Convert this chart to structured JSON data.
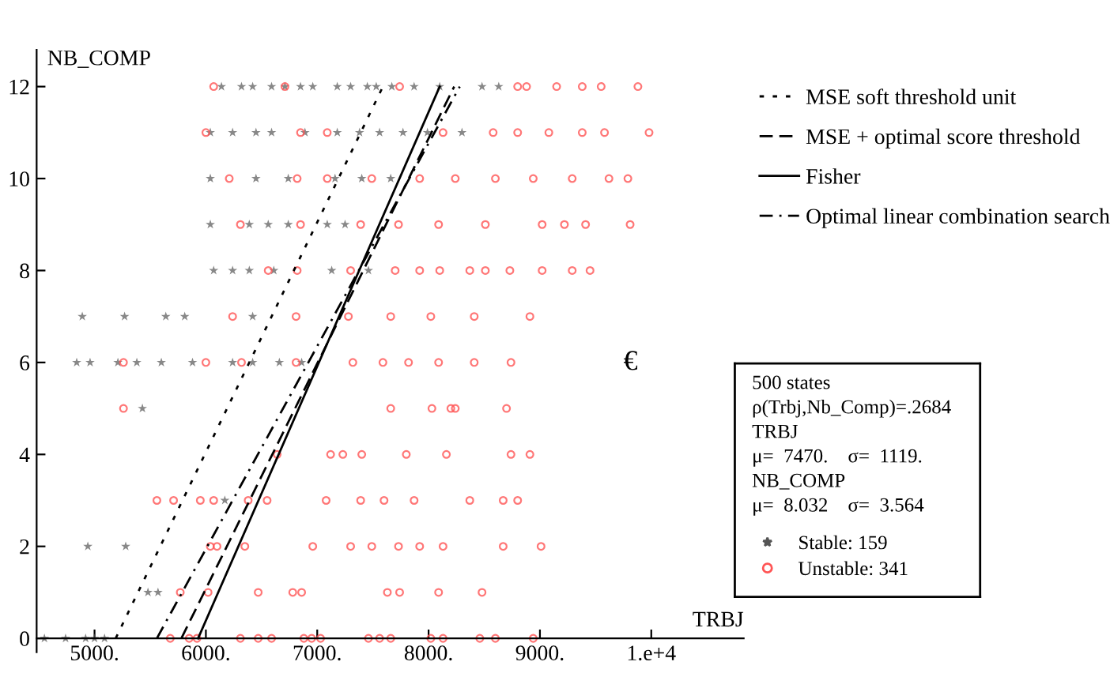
{
  "chart_data": {
    "type": "scatter",
    "xlabel": "TRBJ",
    "ylabel": "NB_COMP",
    "xlim": [
      4480,
      10830
    ],
    "ylim": [
      -0.3,
      12.8
    ],
    "xticks": [
      {
        "value": 5000,
        "label": "5000."
      },
      {
        "value": 6000,
        "label": "6000."
      },
      {
        "value": 7000,
        "label": "7000."
      },
      {
        "value": 8000,
        "label": "8000."
      },
      {
        "value": 9000,
        "label": "9000."
      },
      {
        "value": 10000,
        "label": "1.e+4"
      }
    ],
    "yticks": [
      0,
      2,
      4,
      6,
      8,
      10,
      12
    ],
    "grid": false,
    "legend": "right",
    "annotations": [
      "€",
      "500 states",
      "ρ(Trbj,Nb_Comp)=.2684",
      "TRBJ",
      "μ=  7470.    σ=  1119.",
      "NB_COMP",
      "μ=  8.032    σ=  3.564"
    ],
    "series": [
      {
        "name": "Stable: 159",
        "marker": "star",
        "color": "#555555",
        "x": [
          6140,
          6320,
          6420,
          6590,
          6710,
          6850,
          6960,
          7180,
          7300,
          7450,
          7530,
          7670,
          7870,
          8100,
          8480,
          8630,
          6040,
          6240,
          6450,
          6590,
          6890,
          7180,
          7380,
          7560,
          7770,
          7990,
          8300,
          6040,
          6450,
          6740,
          7160,
          7400,
          7660,
          6040,
          6390,
          6560,
          6740,
          7090,
          7250,
          6070,
          6240,
          6390,
          6610,
          7130,
          7460,
          4890,
          5270,
          5640,
          5810,
          6420,
          4840,
          4960,
          5210,
          5380,
          5600,
          5880,
          6240,
          6420,
          6660,
          6860,
          5430,
          6170,
          4940,
          5280,
          5480,
          5570,
          4550,
          4740,
          4920,
          5000,
          5090
        ],
        "values": [
          12,
          12,
          12,
          12,
          12,
          12,
          12,
          12,
          12,
          12,
          12,
          12,
          12,
          12,
          12,
          12,
          11,
          11,
          11,
          11,
          11,
          11,
          11,
          11,
          11,
          11,
          11,
          10,
          10,
          10,
          10,
          10,
          10,
          9,
          9,
          9,
          9,
          9,
          9,
          8,
          8,
          8,
          8,
          8,
          8,
          7,
          7,
          7,
          7,
          7,
          6,
          6,
          6,
          6,
          6,
          6,
          6,
          6,
          6,
          6,
          5,
          3,
          2,
          2,
          1,
          1,
          0,
          0,
          0,
          0,
          0
        ]
      },
      {
        "name": "Unstable: 341",
        "marker": "circle",
        "color": "#ff5555",
        "x": [
          6070,
          6710,
          7740,
          8800,
          8880,
          9150,
          9380,
          9550,
          9880,
          6000,
          6850,
          7090,
          8130,
          8580,
          8800,
          9080,
          9380,
          9580,
          9980,
          6210,
          6820,
          7090,
          7490,
          7920,
          8240,
          8600,
          8940,
          9290,
          9620,
          9790,
          6310,
          6850,
          7390,
          7730,
          8090,
          8510,
          9020,
          9220,
          9410,
          9810,
          6560,
          6820,
          7300,
          7700,
          7920,
          8100,
          8370,
          8510,
          8730,
          9020,
          9290,
          9450,
          6240,
          6810,
          7280,
          7660,
          8020,
          8410,
          8910,
          5260,
          6000,
          6320,
          6810,
          7320,
          7590,
          7820,
          8090,
          8410,
          8740,
          5260,
          7660,
          8030,
          8200,
          8240,
          8700,
          6640,
          7120,
          7230,
          7400,
          7800,
          8160,
          8740,
          8910,
          5560,
          5710,
          5950,
          6070,
          6380,
          6550,
          7080,
          7390,
          7600,
          7870,
          8370,
          8670,
          8800,
          6040,
          6100,
          6350,
          6960,
          7300,
          7490,
          7730,
          7920,
          8130,
          8670,
          9010,
          5770,
          6020,
          6470,
          6780,
          6860,
          7630,
          7740,
          8090,
          8480,
          5680,
          5850,
          5920,
          6310,
          6470,
          6590,
          6880,
          6950,
          7030,
          7460,
          7560,
          7660,
          8020,
          8130,
          8460,
          8600,
          8940
        ],
        "values": [
          12,
          12,
          12,
          12,
          12,
          12,
          12,
          12,
          12,
          11,
          11,
          11,
          11,
          11,
          11,
          11,
          11,
          11,
          11,
          10,
          10,
          10,
          10,
          10,
          10,
          10,
          10,
          10,
          10,
          10,
          9,
          9,
          9,
          9,
          9,
          9,
          9,
          9,
          9,
          9,
          8,
          8,
          8,
          8,
          8,
          8,
          8,
          8,
          8,
          8,
          8,
          8,
          7,
          7,
          7,
          7,
          7,
          7,
          7,
          6,
          6,
          6,
          6,
          6,
          6,
          6,
          6,
          6,
          6,
          5,
          5,
          5,
          5,
          5,
          5,
          4,
          4,
          4,
          4,
          4,
          4,
          4,
          4,
          3,
          3,
          3,
          3,
          3,
          3,
          3,
          3,
          3,
          3,
          3,
          3,
          3,
          2,
          2,
          2,
          2,
          2,
          2,
          2,
          2,
          2,
          2,
          2,
          1,
          1,
          1,
          1,
          1,
          1,
          1,
          1,
          1,
          0,
          0,
          0,
          0,
          0,
          0,
          0,
          0,
          0,
          0,
          0,
          0,
          0,
          0,
          0,
          0,
          0
        ]
      },
      {
        "name": "MSE soft threshold unit",
        "type": "line",
        "line_style": "dotted",
        "color": "#000000",
        "x": [
          5190,
          7590
        ],
        "values": [
          0,
          12
        ]
      },
      {
        "name": "MSE + optimal score threshold",
        "type": "line",
        "line_style": "dashed",
        "color": "#000000",
        "x": [
          5780,
          8230
        ],
        "values": [
          0,
          12
        ]
      },
      {
        "name": "Fisher",
        "type": "line",
        "line_style": "solid",
        "color": "#000000",
        "x": [
          5930,
          8100
        ],
        "values": [
          0,
          12
        ]
      },
      {
        "name": "Optimal linear combination search",
        "type": "line",
        "line_style": "dashdot",
        "color": "#000000",
        "x": [
          5560,
          8280
        ],
        "values": [
          0,
          12
        ]
      }
    ]
  }
}
